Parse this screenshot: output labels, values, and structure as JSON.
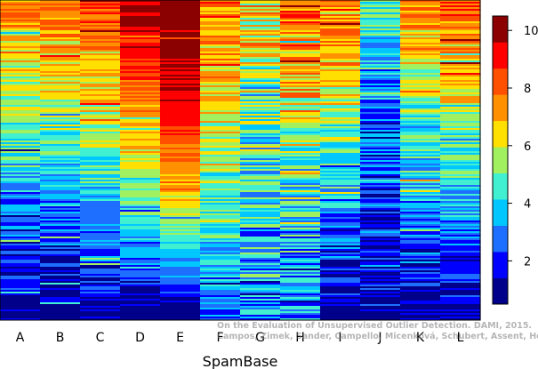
{
  "chart_data": {
    "type": "heatmap",
    "title": "",
    "xlabel": "SpamBase",
    "ylabel": "",
    "columns": [
      "A",
      "B",
      "C",
      "D",
      "E",
      "F",
      "G",
      "H",
      "I",
      "J",
      "K",
      "L"
    ],
    "colorbar": {
      "ticks": [
        2,
        4,
        6,
        8,
        10
      ],
      "range": [
        0.5,
        10.5
      ],
      "colors": [
        "#00008b",
        "#0000ff",
        "#1e6fff",
        "#00c8ff",
        "#40f0d0",
        "#a0f060",
        "#ffe000",
        "#ff9000",
        "#ff5000",
        "#ff0000",
        "#8b0000"
      ]
    },
    "column_profiles": [
      {
        "name": "A",
        "top": 7.6,
        "bottom": 0.6,
        "noise": 1.2,
        "spread": 1.0
      },
      {
        "name": "B",
        "top": 7.8,
        "bottom": 0.6,
        "noise": 1.2,
        "spread": 1.0
      },
      {
        "name": "C",
        "top": 8.6,
        "bottom": 0.8,
        "noise": 1.1,
        "spread": 1.0
      },
      {
        "name": "D",
        "top": 9.6,
        "bottom": 0.6,
        "noise": 0.8,
        "spread": 1.4
      },
      {
        "name": "E",
        "top": 10.4,
        "bottom": 0.6,
        "noise": 0.7,
        "spread": 1.8
      },
      {
        "name": "F",
        "top": 8.0,
        "bottom": 2.6,
        "noise": 1.4,
        "spread": 1.0
      },
      {
        "name": "G",
        "top": 7.2,
        "bottom": 3.0,
        "noise": 2.0,
        "spread": 0.6
      },
      {
        "name": "H",
        "top": 8.8,
        "bottom": 2.4,
        "noise": 2.0,
        "spread": 0.8
      },
      {
        "name": "I",
        "top": 8.2,
        "bottom": 0.6,
        "noise": 1.3,
        "spread": 1.0
      },
      {
        "name": "J",
        "top": 4.8,
        "bottom": 0.8,
        "noise": 1.6,
        "spread": 0.8
      },
      {
        "name": "K",
        "top": 7.6,
        "bottom": 0.7,
        "noise": 1.3,
        "spread": 1.0
      },
      {
        "name": "L",
        "top": 8.4,
        "bottom": 0.8,
        "noise": 1.2,
        "spread": 1.0
      }
    ]
  },
  "watermark": {
    "line1": "On the Evaluation of Unsupervised Outlier Detection. DAMI, 2015.",
    "line2": "Campos, Zimek, Sander, Campello, Micenková, Schubert, Assent, Houle"
  }
}
